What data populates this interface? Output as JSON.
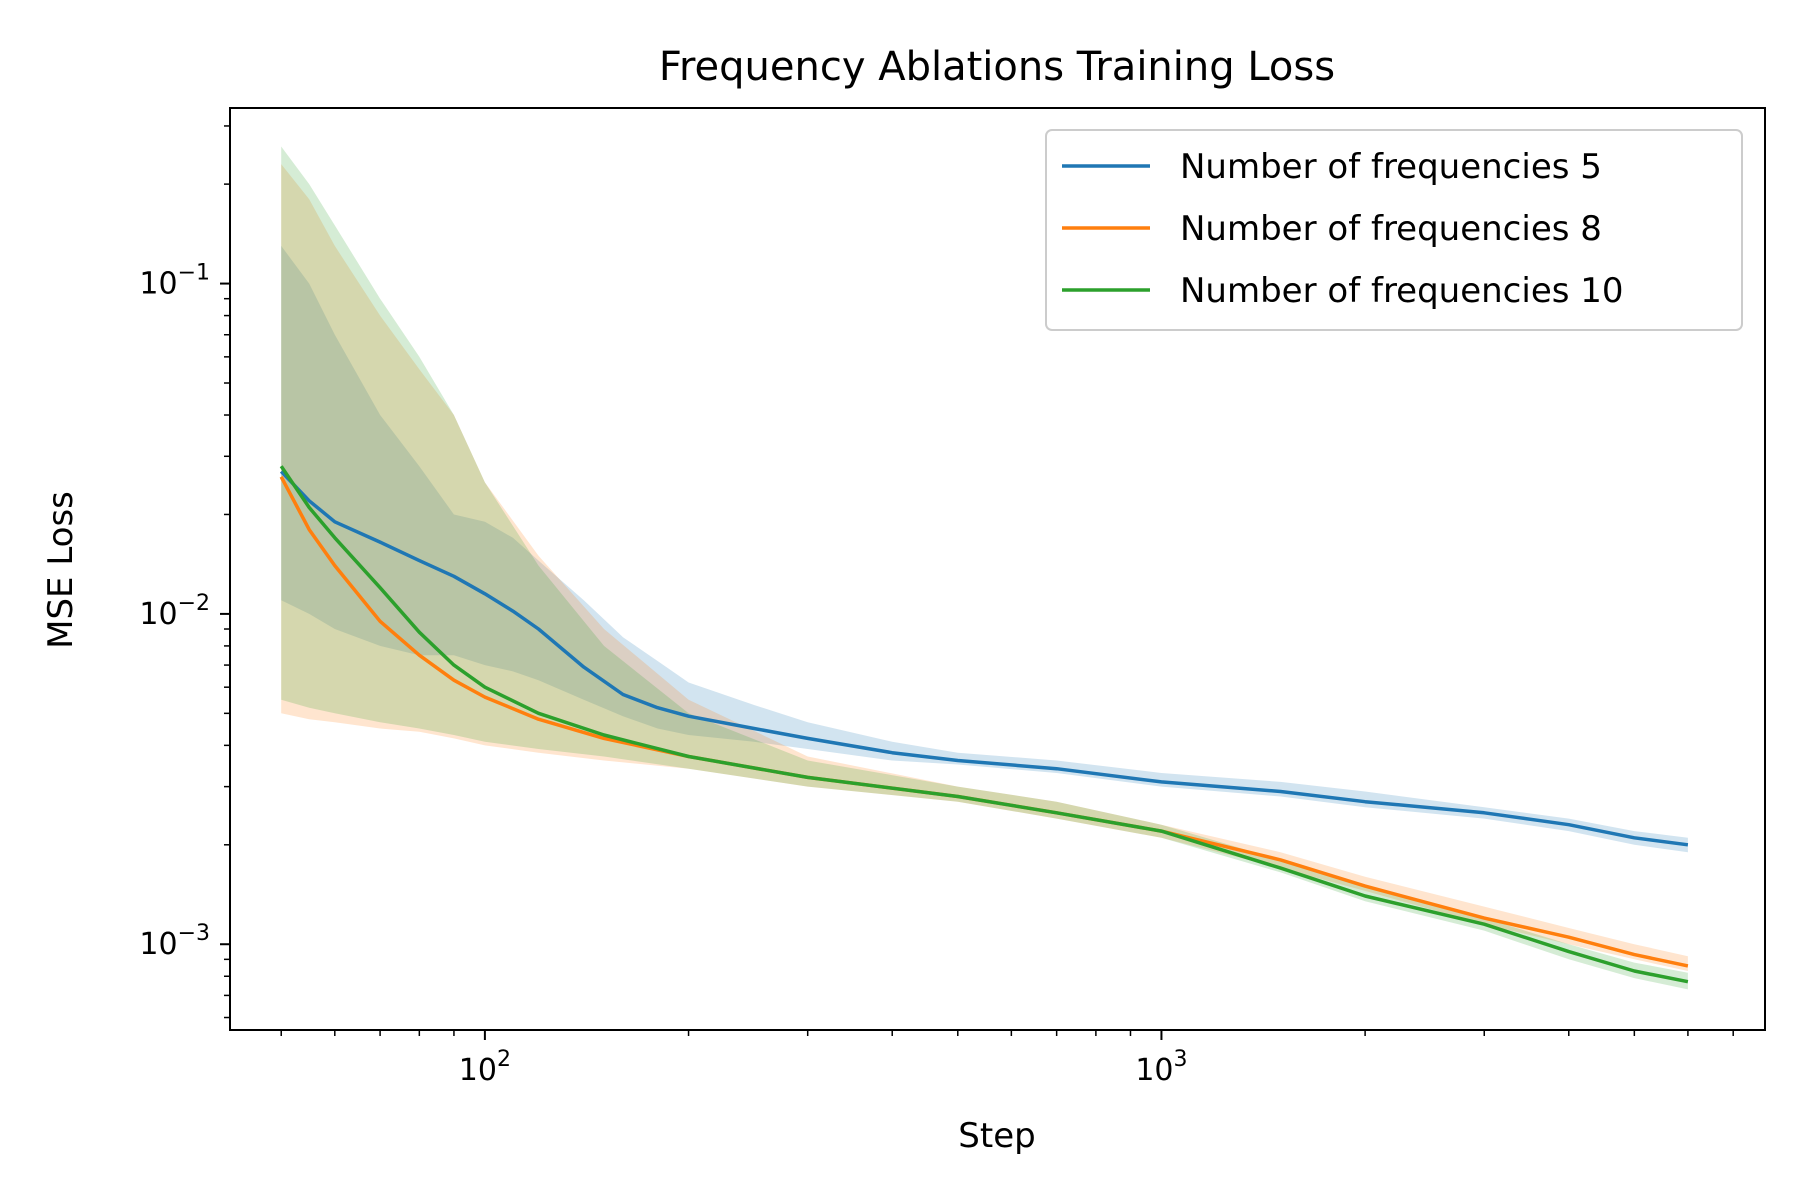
{
  "chart_data": {
    "type": "line",
    "title": "Frequency Ablations Training Loss",
    "xlabel": "Step",
    "ylabel": "MSE Loss",
    "xscale": "log",
    "yscale": "log",
    "xlim": [
      42,
      7800
    ],
    "ylim": [
      0.00055,
      0.34
    ],
    "x_ticks": [
      {
        "value": 100,
        "base": "10",
        "exp": "2"
      },
      {
        "value": 1000,
        "base": "10",
        "exp": "3"
      }
    ],
    "y_ticks": [
      {
        "value": 0.1,
        "base": "10",
        "exp": "−1"
      },
      {
        "value": 0.01,
        "base": "10",
        "exp": "−2"
      },
      {
        "value": 0.001,
        "base": "10",
        "exp": "−3"
      }
    ],
    "grid": false,
    "legend_position": "upper right",
    "series": [
      {
        "name": "Number of frequencies 5",
        "color": "#1f77b4",
        "x": [
          50,
          55,
          60,
          70,
          80,
          90,
          100,
          110,
          120,
          140,
          160,
          180,
          200,
          250,
          300,
          400,
          500,
          700,
          1000,
          1500,
          2000,
          3000,
          4000,
          5000,
          6000
        ],
        "y": [
          0.027,
          0.022,
          0.019,
          0.0165,
          0.0145,
          0.013,
          0.0115,
          0.0102,
          0.009,
          0.0069,
          0.0057,
          0.0052,
          0.0049,
          0.0045,
          0.0042,
          0.0038,
          0.0036,
          0.0034,
          0.0031,
          0.0029,
          0.0027,
          0.0025,
          0.0023,
          0.0021,
          0.002
        ],
        "upper": [
          0.13,
          0.1,
          0.07,
          0.04,
          0.028,
          0.02,
          0.019,
          0.017,
          0.0145,
          0.011,
          0.0085,
          0.0072,
          0.0062,
          0.0053,
          0.0047,
          0.0041,
          0.0038,
          0.0036,
          0.0033,
          0.0031,
          0.0029,
          0.0026,
          0.0024,
          0.0022,
          0.0021
        ],
        "lower": [
          0.011,
          0.01,
          0.009,
          0.008,
          0.0075,
          0.0075,
          0.007,
          0.0067,
          0.0063,
          0.0055,
          0.0049,
          0.0045,
          0.0043,
          0.0041,
          0.0039,
          0.0036,
          0.0035,
          0.0033,
          0.003,
          0.0028,
          0.0026,
          0.0024,
          0.0022,
          0.002,
          0.0019
        ]
      },
      {
        "name": "Number of frequencies 8",
        "color": "#ff7f0e",
        "x": [
          50,
          55,
          60,
          70,
          80,
          90,
          100,
          120,
          150,
          200,
          300,
          500,
          700,
          1000,
          1500,
          2000,
          3000,
          4000,
          5000,
          6000
        ],
        "y": [
          0.026,
          0.018,
          0.014,
          0.0095,
          0.0075,
          0.0063,
          0.0056,
          0.0048,
          0.0042,
          0.0037,
          0.0032,
          0.0028,
          0.0025,
          0.0022,
          0.0018,
          0.0015,
          0.0012,
          0.00105,
          0.00093,
          0.00086
        ],
        "upper": [
          0.23,
          0.18,
          0.13,
          0.08,
          0.055,
          0.04,
          0.025,
          0.015,
          0.009,
          0.0055,
          0.0037,
          0.003,
          0.0027,
          0.0023,
          0.0019,
          0.0016,
          0.0013,
          0.00112,
          0.001,
          0.00092
        ],
        "lower": [
          0.005,
          0.0048,
          0.0047,
          0.0045,
          0.0044,
          0.0042,
          0.004,
          0.0038,
          0.0036,
          0.0034,
          0.003,
          0.0027,
          0.0024,
          0.0021,
          0.0017,
          0.00145,
          0.00115,
          0.001,
          0.0009,
          0.00083
        ]
      },
      {
        "name": "Number of frequencies 10",
        "color": "#2ca02c",
        "x": [
          50,
          55,
          60,
          70,
          80,
          90,
          100,
          120,
          150,
          200,
          300,
          500,
          700,
          1000,
          1500,
          2000,
          3000,
          4000,
          5000,
          6000
        ],
        "y": [
          0.028,
          0.021,
          0.017,
          0.012,
          0.0088,
          0.007,
          0.006,
          0.005,
          0.0043,
          0.0037,
          0.0032,
          0.0028,
          0.0025,
          0.0022,
          0.0017,
          0.0014,
          0.00115,
          0.00095,
          0.00083,
          0.00077
        ],
        "upper": [
          0.26,
          0.2,
          0.15,
          0.09,
          0.06,
          0.04,
          0.025,
          0.014,
          0.008,
          0.005,
          0.0036,
          0.003,
          0.0027,
          0.0023,
          0.0018,
          0.0015,
          0.0012,
          0.001,
          0.00088,
          0.00082
        ],
        "lower": [
          0.0055,
          0.0052,
          0.005,
          0.0047,
          0.0045,
          0.0043,
          0.0041,
          0.0039,
          0.0037,
          0.0034,
          0.003,
          0.0027,
          0.0024,
          0.0021,
          0.00165,
          0.00135,
          0.0011,
          0.0009,
          0.00079,
          0.00073
        ]
      }
    ]
  }
}
